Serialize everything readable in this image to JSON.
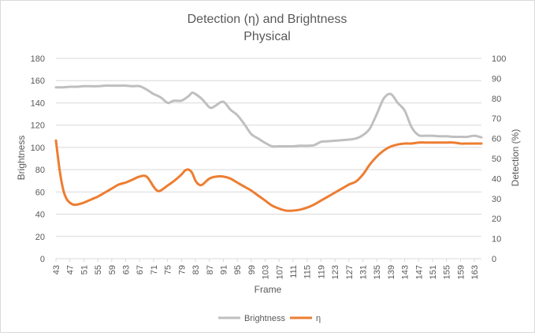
{
  "chart_data": {
    "type": "line",
    "title": "Detection (η) and Brightness",
    "subtitle": "Physical",
    "xlabel": "Frame",
    "ylabel": "Brightness",
    "y2label": "Detection (%)",
    "x_ticks": [
      "43",
      "47",
      "51",
      "55",
      "59",
      "63",
      "67",
      "71",
      "75",
      "79",
      "83",
      "87",
      "91",
      "95",
      "99",
      "103",
      "107",
      "111",
      "115",
      "119",
      "123",
      "127",
      "131",
      "135",
      "139",
      "143",
      "147",
      "151",
      "155",
      "159",
      "163"
    ],
    "ylim": [
      0,
      180
    ],
    "y_ticks": [
      "0",
      "20",
      "40",
      "60",
      "80",
      "100",
      "120",
      "140",
      "160",
      "180"
    ],
    "y2lim": [
      0,
      100
    ],
    "y2_ticks": [
      "0",
      "10",
      "20",
      "30",
      "40",
      "50",
      "60",
      "70",
      "80",
      "90",
      "100"
    ],
    "grid": "horizontal",
    "legend_position": "bottom",
    "series": [
      {
        "name": "Brightness",
        "axis": "left",
        "color": "#bfbfbf",
        "x": [
          43,
          45,
          47,
          49,
          51,
          53,
          55,
          57,
          59,
          61,
          63,
          65,
          67,
          69,
          71,
          73,
          75,
          76,
          77,
          79,
          81,
          82,
          83,
          85,
          87,
          88,
          89,
          91,
          93,
          95,
          97,
          99,
          101,
          103,
          105,
          107,
          109,
          111,
          113,
          115,
          117,
          119,
          121,
          123,
          125,
          127,
          129,
          131,
          133,
          135,
          137,
          139,
          141,
          143,
          145,
          147,
          149,
          151,
          153,
          155,
          157,
          159,
          161,
          163,
          165
        ],
        "y": [
          154,
          154,
          154.5,
          154.5,
          155,
          155,
          155,
          155.5,
          155.5,
          155.5,
          155.5,
          155,
          155,
          152,
          148,
          145,
          140,
          141,
          142,
          142,
          146,
          149,
          148,
          143,
          136,
          136,
          138,
          141,
          134,
          129,
          121,
          112,
          108,
          104,
          101,
          101,
          101,
          101,
          101.5,
          101.5,
          102,
          105,
          105.5,
          106,
          106.5,
          107,
          108,
          111,
          117,
          130,
          144,
          148,
          140,
          133,
          118,
          111,
          110.5,
          110.5,
          110,
          110,
          109.5,
          109.5,
          109.5,
          110.5,
          109
        ]
      },
      {
        "name": "η",
        "axis": "right",
        "color": "#ed7d31",
        "x": [
          43,
          44,
          45,
          46,
          47,
          48,
          49,
          51,
          53,
          55,
          57,
          59,
          61,
          63,
          65,
          67,
          69,
          71,
          72,
          73,
          75,
          77,
          79,
          80,
          81,
          82,
          83,
          84,
          85,
          87,
          89,
          91,
          93,
          95,
          97,
          99,
          101,
          103,
          105,
          107,
          109,
          111,
          113,
          115,
          117,
          119,
          121,
          123,
          125,
          127,
          129,
          131,
          133,
          135,
          137,
          139,
          141,
          143,
          145,
          147,
          149,
          151,
          153,
          155,
          157,
          159,
          161,
          163,
          165
        ],
        "y": [
          59,
          45,
          35,
          30,
          28,
          27,
          27,
          28,
          29.5,
          31,
          33,
          35,
          37,
          38,
          39.5,
          41,
          41,
          36,
          34,
          34,
          36.5,
          39,
          42,
          44,
          44.5,
          43,
          39,
          37,
          37,
          40,
          41,
          41,
          40,
          38,
          36,
          34,
          31.5,
          29,
          26.5,
          25,
          24,
          24,
          24.5,
          25.5,
          27,
          29,
          31,
          33,
          35,
          37,
          38.5,
          42,
          47,
          51,
          54,
          56,
          57,
          57.5,
          57.5,
          58,
          58,
          58,
          58,
          58,
          58,
          57.5,
          57.5,
          57.5,
          57.5
        ]
      }
    ]
  }
}
